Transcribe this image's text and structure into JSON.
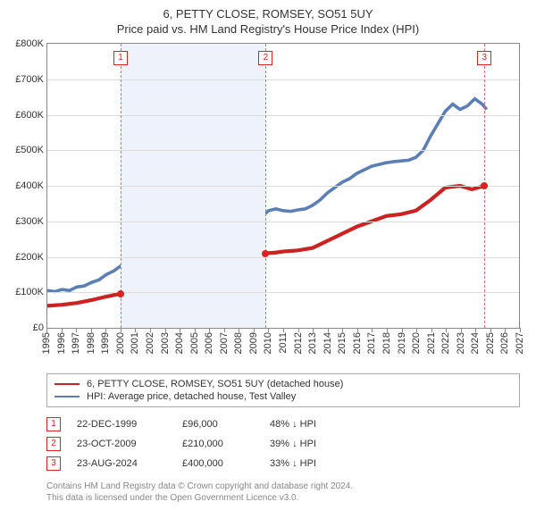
{
  "title": "6, PETTY CLOSE, ROMSEY, SO51 5UY",
  "subtitle": "Price paid vs. HM Land Registry's House Price Index (HPI)",
  "chart": {
    "type": "line",
    "x_min": 1995,
    "x_max": 2027,
    "x_ticks": [
      1995,
      1996,
      1997,
      1998,
      1999,
      2000,
      2001,
      2002,
      2003,
      2004,
      2005,
      2006,
      2007,
      2008,
      2009,
      2010,
      2011,
      2012,
      2013,
      2014,
      2015,
      2016,
      2017,
      2018,
      2019,
      2020,
      2021,
      2022,
      2023,
      2024,
      2025,
      2026,
      2027
    ],
    "y_min": 0,
    "y_max": 800000,
    "y_ticks": [
      0,
      100000,
      200000,
      300000,
      400000,
      500000,
      600000,
      700000,
      800000
    ],
    "y_tick_labels": [
      "£0",
      "£100K",
      "£200K",
      "£300K",
      "£400K",
      "£500K",
      "£600K",
      "£700K",
      "£800K"
    ],
    "grid_color": "#dcdcdc",
    "border_color": "#888888",
    "background_color": "#ffffff",
    "shaded_region": {
      "from": 1999.97,
      "to": 2009.81,
      "color": "#eef2fa"
    },
    "markers": [
      {
        "num": "1",
        "x": 1999.97,
        "line_color": "#e86a6a",
        "dash": "3,3"
      },
      {
        "num": "2",
        "x": 2009.81,
        "line_color": "#e86a6a",
        "dash": "3,3"
      },
      {
        "num": "3",
        "x": 2024.65,
        "line_color": "#e86a6a",
        "dash": "3,3"
      }
    ],
    "series": [
      {
        "name": "price_paid",
        "label": "6, PETTY CLOSE, ROMSEY, SO51 5UY (detached house)",
        "color": "#cc2222",
        "width": 1.4,
        "points": [
          [
            1995,
            62000
          ],
          [
            1996,
            65000
          ],
          [
            1997,
            70000
          ],
          [
            1998,
            78000
          ],
          [
            1999,
            88000
          ],
          [
            1999.97,
            96000
          ],
          [
            2001,
            110000
          ],
          [
            2002,
            130000
          ],
          [
            2003,
            150000
          ],
          [
            2004,
            165000
          ],
          [
            2005,
            175000
          ],
          [
            2006,
            185000
          ],
          [
            2007,
            200000
          ],
          [
            2008,
            195000
          ],
          [
            2008.5,
            178000
          ],
          [
            2009,
            190000
          ],
          [
            2009.81,
            210000
          ],
          [
            2010.5,
            212000
          ],
          [
            2011,
            215000
          ],
          [
            2012,
            218000
          ],
          [
            2013,
            225000
          ],
          [
            2014,
            245000
          ],
          [
            2015,
            265000
          ],
          [
            2016,
            285000
          ],
          [
            2017,
            300000
          ],
          [
            2018,
            315000
          ],
          [
            2019,
            320000
          ],
          [
            2020,
            330000
          ],
          [
            2021,
            360000
          ],
          [
            2022,
            395000
          ],
          [
            2023,
            400000
          ],
          [
            2023.8,
            390000
          ],
          [
            2024.65,
            400000
          ]
        ],
        "sale_dots": [
          {
            "x": 1999.97,
            "y": 96000
          },
          {
            "x": 2009.81,
            "y": 210000
          },
          {
            "x": 2024.65,
            "y": 400000
          }
        ]
      },
      {
        "name": "hpi",
        "label": "HPI: Average price, detached house, Test Valley",
        "color": "#5b7fb5",
        "width": 1.2,
        "points": [
          [
            1995,
            105000
          ],
          [
            1995.5,
            102000
          ],
          [
            1996,
            108000
          ],
          [
            1996.5,
            105000
          ],
          [
            1997,
            115000
          ],
          [
            1997.5,
            118000
          ],
          [
            1998,
            128000
          ],
          [
            1998.5,
            135000
          ],
          [
            1999,
            150000
          ],
          [
            1999.5,
            160000
          ],
          [
            2000,
            175000
          ],
          [
            2000.5,
            185000
          ],
          [
            2001,
            200000
          ],
          [
            2001.5,
            210000
          ],
          [
            2002,
            230000
          ],
          [
            2002.5,
            250000
          ],
          [
            2003,
            265000
          ],
          [
            2003.5,
            275000
          ],
          [
            2004,
            290000
          ],
          [
            2004.5,
            295000
          ],
          [
            2005,
            300000
          ],
          [
            2005.5,
            305000
          ],
          [
            2006,
            315000
          ],
          [
            2006.5,
            325000
          ],
          [
            2007,
            345000
          ],
          [
            2007.5,
            355000
          ],
          [
            2008,
            340000
          ],
          [
            2008.5,
            310000
          ],
          [
            2009,
            295000
          ],
          [
            2009.5,
            310000
          ],
          [
            2010,
            330000
          ],
          [
            2010.5,
            335000
          ],
          [
            2011,
            330000
          ],
          [
            2011.5,
            328000
          ],
          [
            2012,
            332000
          ],
          [
            2012.5,
            335000
          ],
          [
            2013,
            345000
          ],
          [
            2013.5,
            360000
          ],
          [
            2014,
            380000
          ],
          [
            2014.5,
            395000
          ],
          [
            2015,
            410000
          ],
          [
            2015.5,
            420000
          ],
          [
            2016,
            435000
          ],
          [
            2016.5,
            445000
          ],
          [
            2017,
            455000
          ],
          [
            2017.5,
            460000
          ],
          [
            2018,
            465000
          ],
          [
            2018.5,
            468000
          ],
          [
            2019,
            470000
          ],
          [
            2019.5,
            472000
          ],
          [
            2020,
            480000
          ],
          [
            2020.5,
            500000
          ],
          [
            2021,
            540000
          ],
          [
            2021.5,
            575000
          ],
          [
            2022,
            610000
          ],
          [
            2022.5,
            630000
          ],
          [
            2023,
            615000
          ],
          [
            2023.5,
            625000
          ],
          [
            2024,
            645000
          ],
          [
            2024.5,
            630000
          ],
          [
            2024.8,
            615000
          ]
        ]
      }
    ]
  },
  "legend": [
    {
      "color": "#cc2222",
      "label": "6, PETTY CLOSE, ROMSEY, SO51 5UY (detached house)"
    },
    {
      "color": "#5b7fb5",
      "label": "HPI: Average price, detached house, Test Valley"
    }
  ],
  "events": [
    {
      "num": "1",
      "date": "22-DEC-1999",
      "price": "£96,000",
      "delta": "48% ↓ HPI"
    },
    {
      "num": "2",
      "date": "23-OCT-2009",
      "price": "£210,000",
      "delta": "39% ↓ HPI"
    },
    {
      "num": "3",
      "date": "23-AUG-2024",
      "price": "£400,000",
      "delta": "33% ↓ HPI"
    }
  ],
  "footer_line1": "Contains HM Land Registry data © Crown copyright and database right 2024.",
  "footer_line2": "This data is licensed under the Open Government Licence v3.0."
}
